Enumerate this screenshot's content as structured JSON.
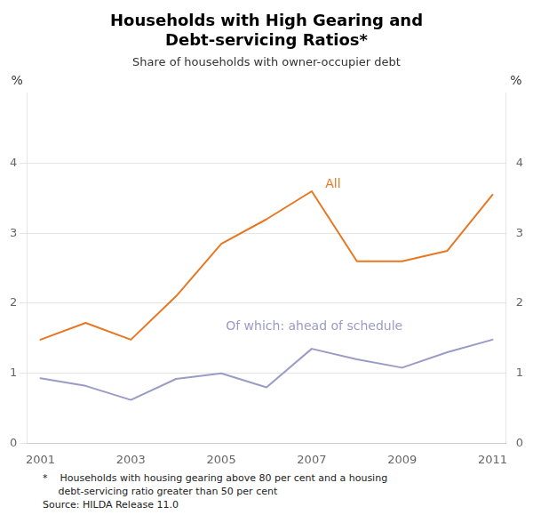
{
  "chart_data": {
    "type": "line",
    "title": "Households with High Gearing and\nDebt-servicing Ratios*",
    "subtitle": "Share of households with owner-occupier debt",
    "footnotes": [
      "*    Households with housing gearing above 80 per cent and a housing",
      "     debt-servicing ratio greater than 50 per cent",
      "Source: HILDA Release 11.0"
    ],
    "ylabel": "%",
    "y2label": "%",
    "x": [
      2001,
      2002,
      2003,
      2004,
      2005,
      2006,
      2007,
      2008,
      2009,
      2010,
      2011
    ],
    "series": [
      {
        "name": "All",
        "color": "#E87722",
        "values": [
          1.48,
          1.72,
          1.48,
          2.1,
          2.85,
          3.2,
          3.6,
          2.6,
          2.6,
          2.75,
          3.55
        ]
      },
      {
        "name": "Of which: ahead of schedule",
        "color": "#9B9BC8",
        "values": [
          0.93,
          0.82,
          0.62,
          0.92,
          1.0,
          0.8,
          1.35,
          1.2,
          1.08,
          1.3,
          1.48
        ]
      }
    ],
    "annotations": [
      {
        "text": "All",
        "x": 2007.3,
        "y": 3.65,
        "color": "#E87722"
      },
      {
        "text": "Of which: ahead of schedule",
        "x": 2005.1,
        "y": 1.62,
        "color": "#9B9BC8"
      }
    ],
    "xlim": [
      2000.7,
      2011.3
    ],
    "xticks": [
      2001,
      2003,
      2005,
      2007,
      2009,
      2011
    ],
    "ylim": [
      0,
      5
    ],
    "yticks": [
      0,
      1,
      2,
      3,
      4
    ],
    "y2lim": [
      0,
      5
    ],
    "y2ticks": [
      0,
      1,
      2,
      3,
      4
    ],
    "grid": "y"
  }
}
